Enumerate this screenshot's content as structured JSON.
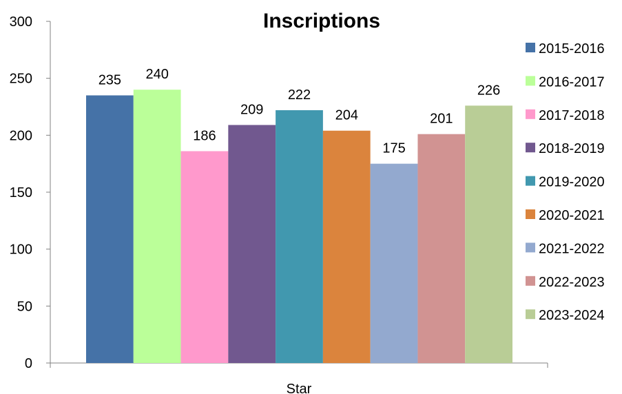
{
  "chart_data": {
    "type": "bar",
    "title": "Inscriptions",
    "categories": [
      "Star"
    ],
    "series": [
      {
        "name": "2015-2016",
        "values": [
          235
        ],
        "color": "#4572A7"
      },
      {
        "name": "2016-2017",
        "values": [
          240
        ],
        "color": "#BBFF99"
      },
      {
        "name": "2017-2018",
        "values": [
          186
        ],
        "color": "#FF99CC"
      },
      {
        "name": "2018-2019",
        "values": [
          209
        ],
        "color": "#71588F"
      },
      {
        "name": "2019-2020",
        "values": [
          222
        ],
        "color": "#4198AF"
      },
      {
        "name": "2020-2021",
        "values": [
          204
        ],
        "color": "#DB843D"
      },
      {
        "name": "2021-2022",
        "values": [
          175
        ],
        "color": "#93A9CF"
      },
      {
        "name": "2022-2023",
        "values": [
          201
        ],
        "color": "#D19392"
      },
      {
        "name": "2023-2024",
        "values": [
          226
        ],
        "color": "#B9CD96"
      }
    ],
    "ylim": [
      0,
      300
    ],
    "yticks": [
      0,
      50,
      100,
      150,
      200,
      250,
      300
    ],
    "xlabel": "",
    "ylabel": "",
    "grid": false,
    "legend": "right",
    "data_labels": true
  }
}
